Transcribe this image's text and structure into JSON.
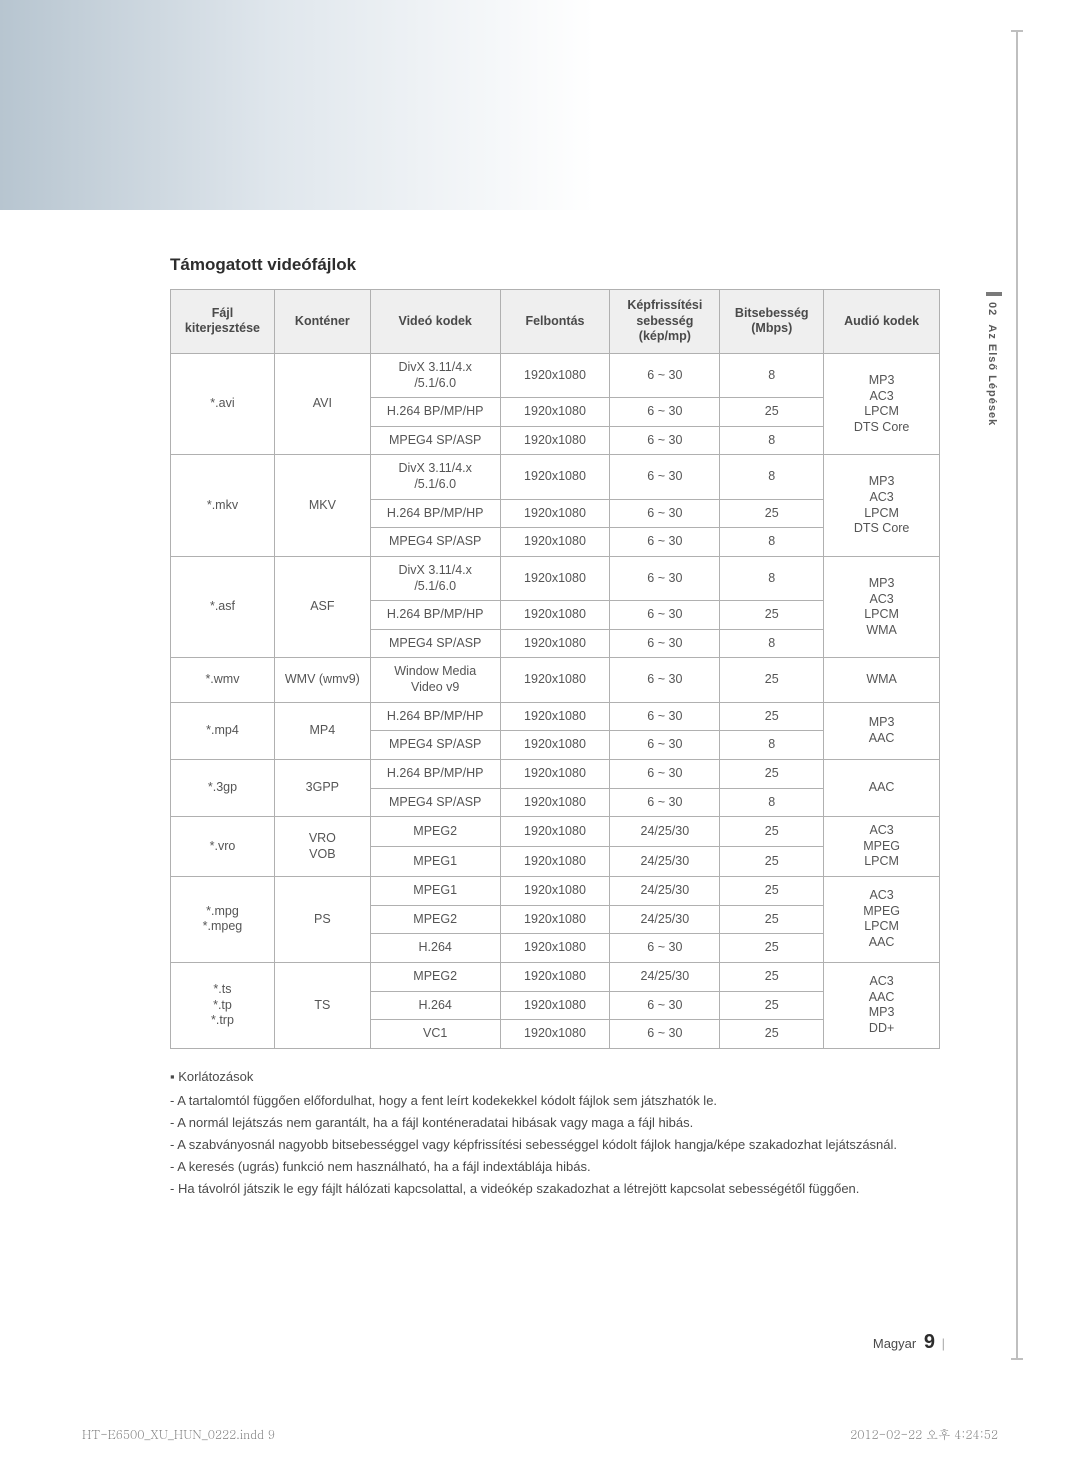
{
  "side_tab": {
    "num": "02",
    "label": "Az Első Lépések"
  },
  "section_title": "Támogatott videófájlok",
  "table": {
    "headers": {
      "ext": "Fájl\nkiterjesztése",
      "container": "Konténer",
      "vcodec": "Videó kodek",
      "res": "Felbontás",
      "fps": "Képfrissítési\nsebesség\n(kép/mp)",
      "bitrate": "Bitsebesség\n(Mbps)",
      "acodec": "Audió kodek"
    },
    "groups": [
      {
        "ext": "*.avi",
        "container": "AVI",
        "rows": [
          {
            "vcodec": "DivX 3.11/4.x\n/5.1/6.0",
            "res": "1920x1080",
            "fps": "6 ~ 30",
            "bitrate": "8"
          },
          {
            "vcodec": "H.264 BP/MP/HP",
            "res": "1920x1080",
            "fps": "6 ~ 30",
            "bitrate": "25"
          },
          {
            "vcodec": "MPEG4 SP/ASP",
            "res": "1920x1080",
            "fps": "6 ~ 30",
            "bitrate": "8"
          }
        ],
        "acodec": "MP3\nAC3\nLPCM\nDTS Core"
      },
      {
        "ext": "*.mkv",
        "container": "MKV",
        "rows": [
          {
            "vcodec": "DivX 3.11/4.x\n/5.1/6.0",
            "res": "1920x1080",
            "fps": "6 ~ 30",
            "bitrate": "8"
          },
          {
            "vcodec": "H.264 BP/MP/HP",
            "res": "1920x1080",
            "fps": "6 ~ 30",
            "bitrate": "25"
          },
          {
            "vcodec": "MPEG4 SP/ASP",
            "res": "1920x1080",
            "fps": "6 ~ 30",
            "bitrate": "8"
          }
        ],
        "acodec": "MP3\nAC3\nLPCM\nDTS Core"
      },
      {
        "ext": "*.asf",
        "container": "ASF",
        "rows": [
          {
            "vcodec": "DivX 3.11/4.x\n/5.1/6.0",
            "res": "1920x1080",
            "fps": "6 ~ 30",
            "bitrate": "8"
          },
          {
            "vcodec": "H.264 BP/MP/HP",
            "res": "1920x1080",
            "fps": "6 ~ 30",
            "bitrate": "25"
          },
          {
            "vcodec": "MPEG4 SP/ASP",
            "res": "1920x1080",
            "fps": "6 ~ 30",
            "bitrate": "8"
          }
        ],
        "acodec": "MP3\nAC3\nLPCM\nWMA"
      },
      {
        "ext": "*.wmv",
        "container": "WMV (wmv9)",
        "rows": [
          {
            "vcodec": "Window Media\nVideo v9",
            "res": "1920x1080",
            "fps": "6 ~ 30",
            "bitrate": "25"
          }
        ],
        "acodec": "WMA"
      },
      {
        "ext": "*.mp4",
        "container": "MP4",
        "rows": [
          {
            "vcodec": "H.264 BP/MP/HP",
            "res": "1920x1080",
            "fps": "6 ~ 30",
            "bitrate": "25"
          },
          {
            "vcodec": "MPEG4 SP/ASP",
            "res": "1920x1080",
            "fps": "6 ~ 30",
            "bitrate": "8"
          }
        ],
        "acodec": "MP3\nAAC"
      },
      {
        "ext": "*.3gp",
        "container": "3GPP",
        "rows": [
          {
            "vcodec": "H.264 BP/MP/HP",
            "res": "1920x1080",
            "fps": "6 ~ 30",
            "bitrate": "25"
          },
          {
            "vcodec": "MPEG4 SP/ASP",
            "res": "1920x1080",
            "fps": "6 ~ 30",
            "bitrate": "8"
          }
        ],
        "acodec": "AAC"
      },
      {
        "ext": "*.vro",
        "container": "VRO\nVOB",
        "rows": [
          {
            "vcodec": "MPEG2",
            "res": "1920x1080",
            "fps": "24/25/30",
            "bitrate": "25"
          },
          {
            "vcodec": "MPEG1",
            "res": "1920x1080",
            "fps": "24/25/30",
            "bitrate": "25"
          }
        ],
        "acodec": "AC3\nMPEG\nLPCM"
      },
      {
        "ext": "*.mpg\n*.mpeg",
        "container": "PS",
        "rows": [
          {
            "vcodec": "MPEG1",
            "res": "1920x1080",
            "fps": "24/25/30",
            "bitrate": "25"
          },
          {
            "vcodec": "MPEG2",
            "res": "1920x1080",
            "fps": "24/25/30",
            "bitrate": "25"
          },
          {
            "vcodec": "H.264",
            "res": "1920x1080",
            "fps": "6 ~ 30",
            "bitrate": "25"
          }
        ],
        "acodec": "AC3\nMPEG\nLPCM\nAAC"
      },
      {
        "ext": "*.ts\n*.tp\n*.trp",
        "container": "TS",
        "rows": [
          {
            "vcodec": "MPEG2",
            "res": "1920x1080",
            "fps": "24/25/30",
            "bitrate": "25"
          },
          {
            "vcodec": "H.264",
            "res": "1920x1080",
            "fps": "6 ~ 30",
            "bitrate": "25"
          },
          {
            "vcodec": "VC1",
            "res": "1920x1080",
            "fps": "6 ~ 30",
            "bitrate": "25"
          }
        ],
        "acodec": "AC3\nAAC\nMP3\nDD+"
      }
    ]
  },
  "notes": {
    "heading": "Korlátozások",
    "items": [
      "A tartalomtól függően előfordulhat, hogy a fent leírt kodekekkel kódolt fájlok sem játszhatók le.",
      "A normál lejátszás nem garantált, ha a fájl konténeradatai hibásak vagy maga a fájl hibás.",
      "A szabványosnál nagyobb bitsebességgel vagy képfrissítési sebességgel kódolt fájlok hangja/képe szakadozhat lejátszásnál.",
      "A keresés (ugrás) funkció nem használható, ha a fájl indextáblája hibás.",
      "Ha távolról játszik le egy fájlt hálózati kapcsolattal, a videókép szakadozhat a létrejött kapcsolat sebességétől függően."
    ]
  },
  "footer_right": {
    "label": "Magyar",
    "page": "9"
  },
  "print_footer": {
    "left": "HT-E6500_XU_HUN_0222.indd   9",
    "right": "2012-02-22   오후 4:24:52"
  }
}
